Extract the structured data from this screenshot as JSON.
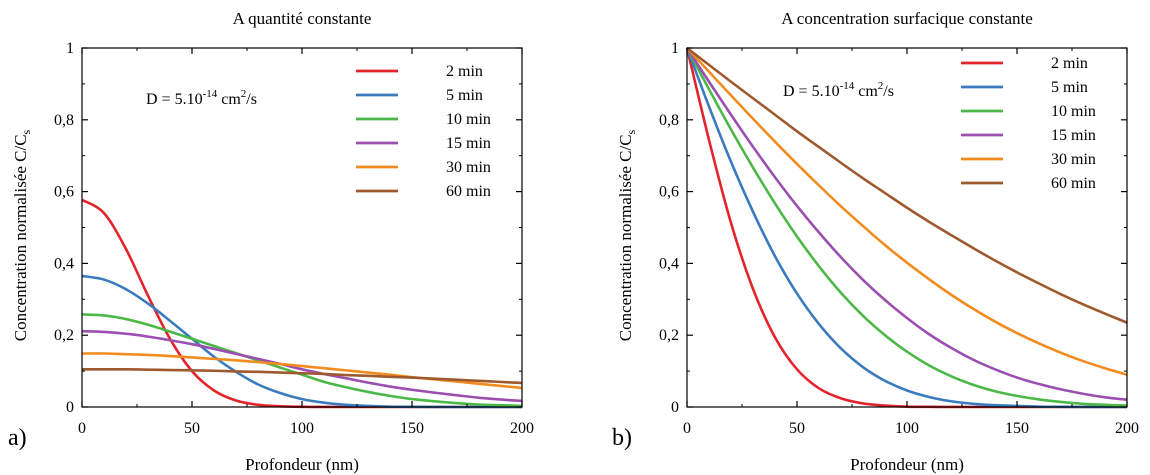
{
  "chart_data": [
    {
      "type": "line",
      "panel_label": "a)",
      "title": "A quantité constante",
      "xlabel": "Profondeur (nm)",
      "ylabel": "Concentration normalisée C/C",
      "ylabel_sub": "s",
      "annotation": {
        "base": "D = 5.10",
        "exp": "-14",
        "unit": " cm",
        "unit_exp": "2",
        "unit_tail": "/s"
      },
      "xlim": [
        0,
        200
      ],
      "ylim": [
        0,
        1
      ],
      "xticks": [
        "0",
        "50",
        "100",
        "150",
        "200"
      ],
      "yticks": [
        "0",
        "0,2",
        "0,4",
        "0,6",
        "0,8",
        "1"
      ],
      "grid": false,
      "legend_position": "top-right",
      "x": [
        0,
        10,
        20,
        30,
        40,
        50,
        60,
        70,
        80,
        90,
        100,
        110,
        120,
        130,
        140,
        150,
        160,
        170,
        180,
        190,
        200
      ],
      "series": [
        {
          "name": "2 min",
          "color": "#e3242b",
          "values": [
            0.577,
            0.54,
            0.44,
            0.31,
            0.19,
            0.1,
            0.046,
            0.018,
            0.006,
            0.002,
            0.0005,
            0.0001,
            0,
            0,
            0,
            0,
            0,
            0,
            0,
            0,
            0
          ]
        },
        {
          "name": "5 min",
          "color": "#3a7bbf",
          "values": [
            0.365,
            0.355,
            0.328,
            0.288,
            0.24,
            0.19,
            0.14,
            0.098,
            0.063,
            0.039,
            0.022,
            0.012,
            0.006,
            0.003,
            0.001,
            0.0006,
            0.0002,
            0,
            0,
            0,
            0
          ]
        },
        {
          "name": "10 min",
          "color": "#4cb848",
          "values": [
            0.258,
            0.255,
            0.245,
            0.229,
            0.21,
            0.19,
            0.17,
            0.15,
            0.13,
            0.11,
            0.09,
            0.07,
            0.055,
            0.042,
            0.031,
            0.022,
            0.016,
            0.011,
            0.007,
            0.005,
            0.003
          ]
        },
        {
          "name": "15 min",
          "color": "#9b4fb0",
          "values": [
            0.211,
            0.209,
            0.204,
            0.196,
            0.186,
            0.175,
            0.162,
            0.148,
            0.134,
            0.12,
            0.105,
            0.092,
            0.08,
            0.068,
            0.057,
            0.048,
            0.04,
            0.033,
            0.026,
            0.021,
            0.017
          ]
        },
        {
          "name": "30 min",
          "color": "#f28c1e",
          "values": [
            0.149,
            0.149,
            0.147,
            0.145,
            0.142,
            0.138,
            0.134,
            0.13,
            0.125,
            0.12,
            0.114,
            0.108,
            0.102,
            0.096,
            0.09,
            0.083,
            0.077,
            0.071,
            0.065,
            0.059,
            0.053
          ]
        },
        {
          "name": "60 min",
          "color": "#9e5a2e",
          "values": [
            0.105,
            0.105,
            0.105,
            0.104,
            0.103,
            0.102,
            0.101,
            0.099,
            0.098,
            0.096,
            0.094,
            0.092,
            0.089,
            0.087,
            0.084,
            0.082,
            0.079,
            0.076,
            0.073,
            0.07,
            0.067
          ]
        }
      ]
    },
    {
      "type": "line",
      "panel_label": "b)",
      "title": "A concentration surfacique constante",
      "xlabel": "Profondeur (nm)",
      "ylabel": "Concentration normalisée C/C",
      "ylabel_sub": "s",
      "annotation": {
        "base": "D = 5.10",
        "exp": "-14",
        "unit": " cm",
        "unit_exp": "2",
        "unit_tail": "/s"
      },
      "xlim": [
        0,
        200
      ],
      "ylim": [
        0,
        1
      ],
      "xticks": [
        "0",
        "50",
        "100",
        "150",
        "200"
      ],
      "yticks": [
        "0",
        "0,2",
        "0,4",
        "0,6",
        "0,8",
        "1"
      ],
      "grid": false,
      "legend_position": "top-right",
      "x": [
        0,
        10,
        20,
        30,
        40,
        50,
        60,
        70,
        80,
        90,
        100,
        110,
        120,
        130,
        140,
        150,
        160,
        170,
        180,
        190,
        200
      ],
      "series": [
        {
          "name": "2 min",
          "color": "#e3242b",
          "values": [
            1,
            0.744,
            0.513,
            0.329,
            0.194,
            0.105,
            0.052,
            0.024,
            0.01,
            0.004,
            0.001,
            0.0004,
            0.0001,
            0,
            0,
            0,
            0,
            0,
            0,
            0,
            0
          ]
        },
        {
          "name": "5 min",
          "color": "#3a7bbf",
          "values": [
            1,
            0.837,
            0.683,
            0.544,
            0.42,
            0.316,
            0.231,
            0.163,
            0.111,
            0.073,
            0.046,
            0.028,
            0.016,
            0.009,
            0.005,
            0.003,
            0.001,
            0.0006,
            0.0003,
            0.0001,
            0
          ]
        },
        {
          "name": "10 min",
          "color": "#4cb848",
          "values": [
            1,
            0.885,
            0.773,
            0.667,
            0.567,
            0.475,
            0.392,
            0.318,
            0.254,
            0.2,
            0.154,
            0.116,
            0.086,
            0.062,
            0.044,
            0.031,
            0.021,
            0.014,
            0.009,
            0.006,
            0.004
          ]
        },
        {
          "name": "15 min",
          "color": "#9b4fb0",
          "values": [
            1,
            0.906,
            0.814,
            0.725,
            0.64,
            0.56,
            0.486,
            0.417,
            0.354,
            0.298,
            0.248,
            0.203,
            0.165,
            0.132,
            0.105,
            0.082,
            0.064,
            0.049,
            0.037,
            0.027,
            0.02
          ]
        },
        {
          "name": "30 min",
          "color": "#f28c1e",
          "values": [
            1,
            0.934,
            0.868,
            0.803,
            0.739,
            0.677,
            0.617,
            0.559,
            0.504,
            0.451,
            0.402,
            0.356,
            0.313,
            0.274,
            0.238,
            0.206,
            0.177,
            0.151,
            0.128,
            0.108,
            0.09
          ]
        },
        {
          "name": "60 min",
          "color": "#9e5a2e",
          "values": [
            1,
            0.953,
            0.906,
            0.86,
            0.814,
            0.768,
            0.724,
            0.68,
            0.637,
            0.596,
            0.555,
            0.516,
            0.479,
            0.443,
            0.408,
            0.375,
            0.344,
            0.314,
            0.286,
            0.26,
            0.235
          ]
        }
      ]
    }
  ]
}
